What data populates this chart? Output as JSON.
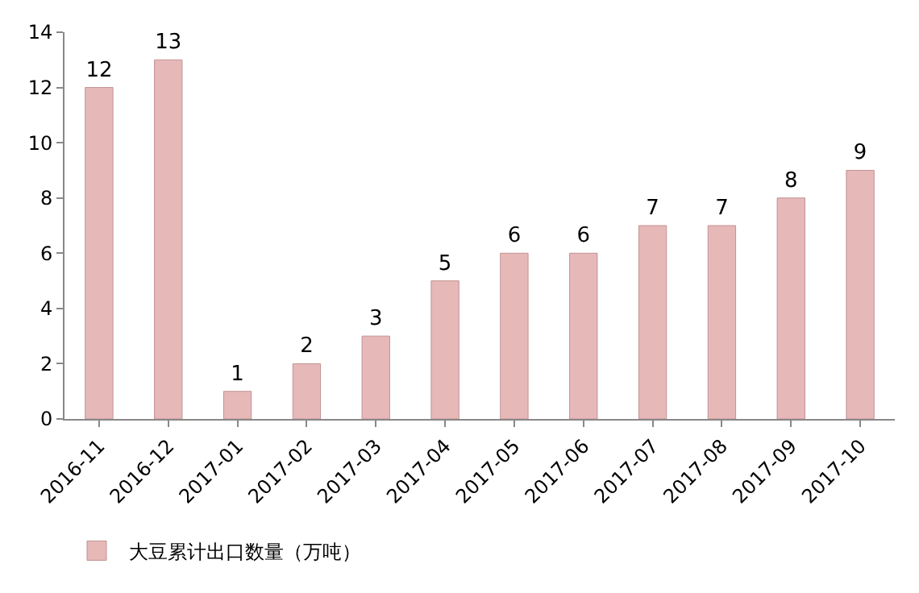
{
  "chart_data": {
    "type": "bar",
    "categories": [
      "2016-11",
      "2016-12",
      "2017-01",
      "2017-02",
      "2017-03",
      "2017-04",
      "2017-05",
      "2017-06",
      "2017-07",
      "2017-08",
      "2017-09",
      "2017-10"
    ],
    "series": [
      {
        "name": "大豆累计出口数量（万吨）",
        "color": "#e6b9b8",
        "values": [
          12,
          13,
          1,
          2,
          3,
          5,
          6,
          6,
          7,
          7,
          8,
          9
        ]
      }
    ],
    "ylim": [
      0,
      14
    ],
    "yticks": [
      0,
      2,
      4,
      6,
      8,
      10,
      12,
      14
    ],
    "data_labels": true,
    "grid": false,
    "legend": "bottom left"
  }
}
